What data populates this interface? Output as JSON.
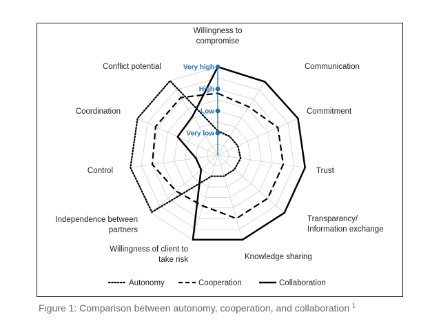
{
  "chart_data": {
    "type": "radar",
    "axes": [
      [
        "Willingness to",
        "compromise"
      ],
      [
        "Communication"
      ],
      [
        "Commitment"
      ],
      [
        "Trust"
      ],
      [
        "Transparancy/",
        "Information exchange"
      ],
      [
        "Knowledge sharing"
      ],
      [
        "Willingness of client to",
        "take risk"
      ],
      [
        "Independence between",
        "partners"
      ],
      [
        "Control"
      ],
      [
        "Coordination"
      ],
      [
        "Conflict potential"
      ]
    ],
    "scale_levels": [
      "Very low",
      "Low",
      "High",
      "Very high"
    ],
    "scale_range": [
      0,
      4
    ],
    "series": [
      {
        "name": "Autonomy",
        "style": "dotted",
        "values": [
          1.1,
          1.0,
          1.0,
          1.05,
          1.0,
          1.0,
          1.0,
          3.95,
          4.0,
          4.0,
          4.0
        ]
      },
      {
        "name": "Cooperation",
        "style": "dashed",
        "values": [
          2.8,
          2.6,
          3.0,
          3.0,
          3.0,
          3.0,
          2.4,
          2.5,
          3.0,
          3.1,
          3.1
        ]
      },
      {
        "name": "Collaboration",
        "style": "solid",
        "values": [
          4.0,
          3.95,
          4.0,
          4.0,
          4.0,
          4.0,
          4.0,
          1.0,
          1.0,
          2.0,
          2.1
        ]
      }
    ],
    "legend_position": "bottom"
  },
  "caption": {
    "text": "Figure 1: Comparison between autonomy, cooperation, and collaboration",
    "footnote": "1"
  },
  "colors": {
    "axis_marker": "#1f6fb3",
    "grid": "#cfcfcf",
    "series": "#000000",
    "caption": "#666666"
  }
}
